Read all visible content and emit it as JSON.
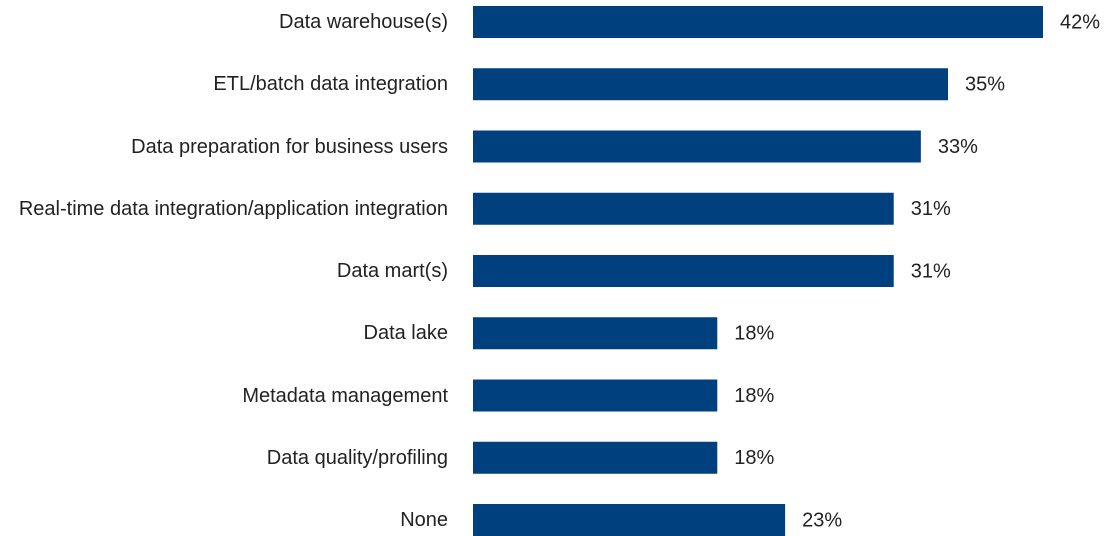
{
  "chart_data": {
    "type": "bar",
    "orientation": "horizontal",
    "categories": [
      "Data warehouse(s)",
      "ETL/batch data integration",
      "Data preparation for business users",
      "Real-time data integration/application integration",
      "Data mart(s)",
      "Data lake",
      "Metadata management",
      "Data quality/profiling",
      "None"
    ],
    "values": [
      42,
      35,
      33,
      31,
      31,
      18,
      18,
      18,
      23
    ],
    "value_labels": [
      "42%",
      "35%",
      "33%",
      "31%",
      "31%",
      "18%",
      "18%",
      "18%",
      "23%"
    ],
    "color": "#00407f"
  }
}
